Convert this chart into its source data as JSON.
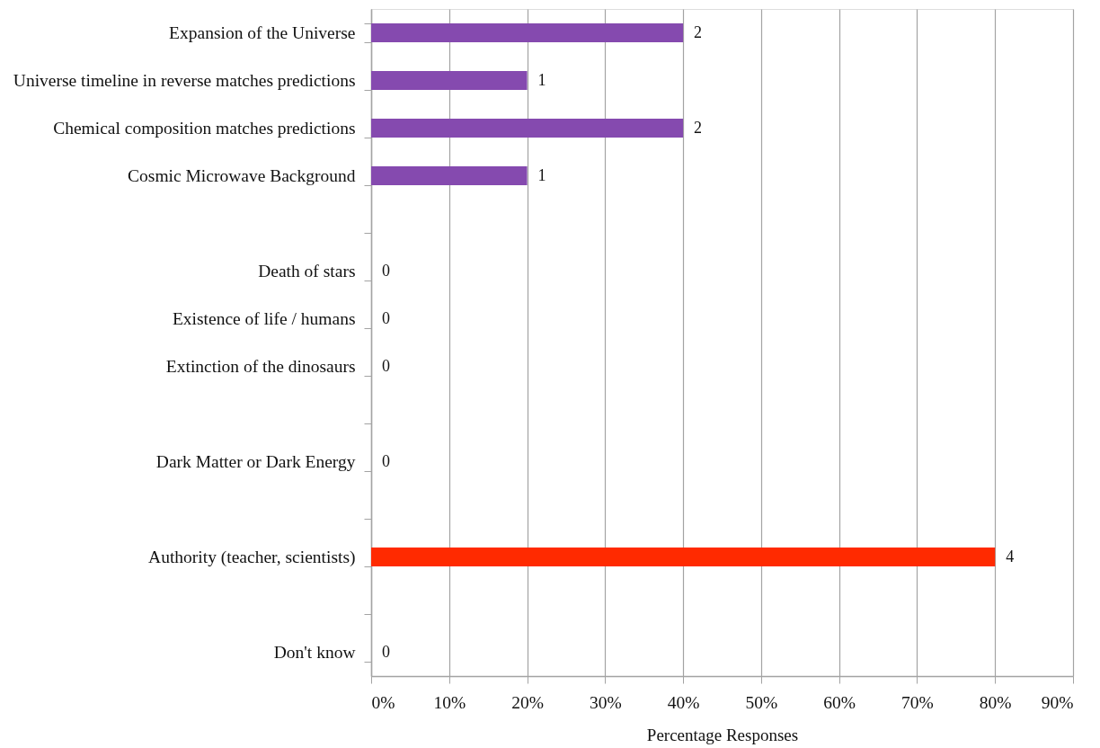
{
  "chart_data": {
    "type": "bar",
    "orientation": "horizontal",
    "categories": [
      "Expansion of the Universe",
      "Universe timeline in reverse matches predictions",
      "Chemical composition matches predictions",
      "Cosmic Microwave Background",
      null,
      "Death of stars",
      "Existence of life / humans",
      "Extinction of the dinosaurs",
      null,
      "Dark Matter or Dark Energy",
      null,
      "Authority (teacher, scientists)",
      null,
      "Don't know"
    ],
    "values": [
      40,
      20,
      40,
      20,
      null,
      0,
      0,
      0,
      null,
      0,
      null,
      80,
      null,
      0
    ],
    "colors": [
      "#854aaf",
      "#854aaf",
      "#854aaf",
      "#854aaf",
      null,
      "#854aaf",
      "#854aaf",
      "#854aaf",
      null,
      "#854aaf",
      null,
      "#ff2a00",
      null,
      "#854aaf"
    ],
    "annotations": [
      {
        "text": "2",
        "x": 40,
        "y": "Expansion of the Universe"
      },
      {
        "text": "1",
        "x": 20,
        "y": "Universe timeline in reverse matches predictions"
      },
      {
        "text": "2",
        "x": 40,
        "y": "Chemical composition matches predictions"
      },
      {
        "text": "1",
        "x": 20,
        "y": "Cosmic Microwave Background"
      },
      {
        "text": "0",
        "x": 0,
        "y": "Death of stars"
      },
      {
        "text": "0",
        "x": 0,
        "y": "Existence of life / humans"
      },
      {
        "text": "0",
        "x": 0,
        "y": "Extinction of the dinosaurs"
      },
      {
        "text": "0",
        "x": 0,
        "y": "Dark Matter or Dark Energy"
      },
      {
        "text": "4",
        "x": 80,
        "y": "Authority (teacher, scientists)"
      },
      {
        "text": "0",
        "x": 0,
        "y": "Don't know"
      }
    ],
    "xlabel": "Percentage Responses",
    "xlim": [
      0,
      90
    ],
    "xticks": [
      {
        "value": 0,
        "label": "0%"
      },
      {
        "value": 10,
        "label": "10%"
      },
      {
        "value": 20,
        "label": "20%"
      },
      {
        "value": 30,
        "label": "30%"
      },
      {
        "value": 40,
        "label": "40%"
      },
      {
        "value": 50,
        "label": "50%"
      },
      {
        "value": 60,
        "label": "60%"
      },
      {
        "value": 70,
        "label": "70%"
      },
      {
        "value": 80,
        "label": "80%"
      },
      {
        "value": 90,
        "label": "90%"
      }
    ],
    "grid": "x"
  }
}
